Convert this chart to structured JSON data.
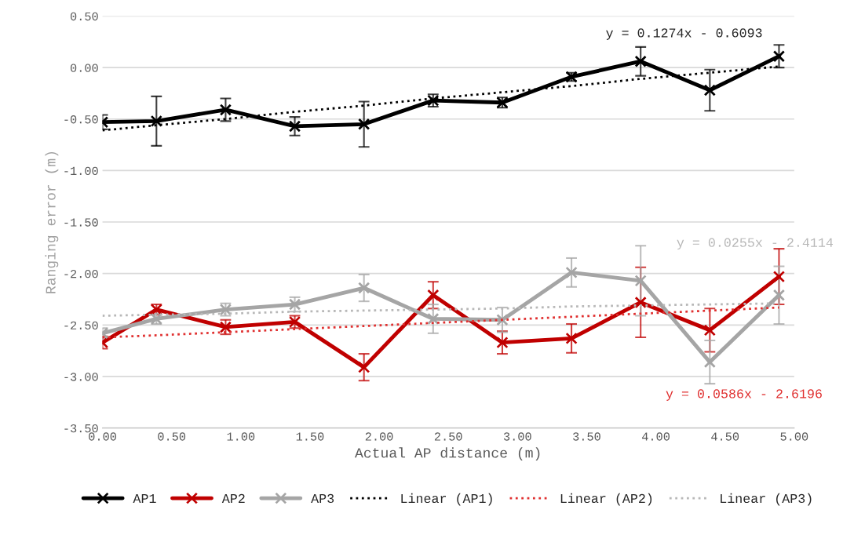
{
  "chart_data": {
    "type": "line",
    "xlabel": "Actual AP distance (m)",
    "ylabel": "Ranging error (m)",
    "x": [
      0,
      0.39,
      0.89,
      1.39,
      1.89,
      2.39,
      2.89,
      3.39,
      3.89,
      4.39,
      4.89
    ],
    "series": [
      {
        "name": "AP1",
        "color": "#000000",
        "marker": "cross",
        "values": [
          -0.53,
          -0.52,
          -0.41,
          -0.57,
          -0.55,
          -0.32,
          -0.34,
          -0.09,
          0.06,
          -0.22,
          0.11
        ],
        "errors": [
          0.07,
          0.24,
          0.11,
          0.09,
          0.22,
          0.06,
          0.05,
          0.04,
          0.14,
          0.2,
          0.11
        ]
      },
      {
        "name": "AP2",
        "color": "#c00000",
        "marker": "cross",
        "values": [
          -2.67,
          -2.35,
          -2.52,
          -2.47,
          -2.91,
          -2.21,
          -2.67,
          -2.63,
          -2.28,
          -2.55,
          -2.03
        ],
        "errors": [
          0.06,
          0.05,
          0.07,
          0.06,
          0.13,
          0.13,
          0.11,
          0.14,
          0.34,
          0.21,
          0.27
        ]
      },
      {
        "name": "AP3",
        "color": "#a5a5a5",
        "marker": "cross",
        "values": [
          -2.58,
          -2.44,
          -2.35,
          -2.3,
          -2.14,
          -2.44,
          -2.45,
          -1.99,
          -2.07,
          -2.86,
          -2.21
        ],
        "errors": [
          0.05,
          0.05,
          0.06,
          0.07,
          0.13,
          0.14,
          0.12,
          0.14,
          0.34,
          0.21,
          0.28
        ]
      },
      {
        "name": "Linear (AP1)",
        "color": "#000000",
        "marker": "none",
        "line_style": "dotted",
        "values": [
          -0.61,
          -0.56,
          -0.5,
          -0.43,
          -0.37,
          -0.3,
          -0.24,
          -0.18,
          -0.11,
          -0.05,
          0.01
        ]
      },
      {
        "name": "Linear (AP2)",
        "color": "#e03030",
        "marker": "none",
        "line_style": "dotted",
        "values": [
          -2.62,
          -2.6,
          -2.57,
          -2.54,
          -2.51,
          -2.48,
          -2.45,
          -2.42,
          -2.39,
          -2.36,
          -2.33
        ]
      },
      {
        "name": "Linear (AP3)",
        "color": "#b8b8b8",
        "marker": "none",
        "line_style": "dotted",
        "values": [
          -2.41,
          -2.4,
          -2.39,
          -2.37,
          -2.36,
          -2.35,
          -2.34,
          -2.32,
          -2.31,
          -2.3,
          -2.29
        ]
      }
    ],
    "annotations": [
      "y = 0.1274x - 0.6093",
      "y = 0.0586x - 2.6196",
      "y = 0.0255x - 2.4114"
    ],
    "xlim": [
      0,
      5
    ],
    "ylim": [
      -3.5,
      0.5
    ],
    "xticks": [
      {
        "value": 0,
        "label": "0.00"
      },
      {
        "value": 0.5,
        "label": "0.50"
      },
      {
        "value": 1,
        "label": "1.00"
      },
      {
        "value": 1.5,
        "label": "1.50"
      },
      {
        "value": 2,
        "label": "2.00"
      },
      {
        "value": 2.5,
        "label": "2.50"
      },
      {
        "value": 3,
        "label": "3.00"
      },
      {
        "value": 3.5,
        "label": "3.50"
      },
      {
        "value": 4,
        "label": "4.00"
      },
      {
        "value": 4.5,
        "label": "4.50"
      },
      {
        "value": 5,
        "label": "5.00"
      }
    ],
    "yticks": [
      {
        "value": 0.5,
        "label": "0.50"
      },
      {
        "value": 0,
        "label": "0.00"
      },
      {
        "value": -0.5,
        "label": "-0.50"
      },
      {
        "value": -1,
        "label": "-1.00"
      },
      {
        "value": -1.5,
        "label": "-1.50"
      },
      {
        "value": -2,
        "label": "-2.00"
      },
      {
        "value": -2.5,
        "label": "-2.50"
      },
      {
        "value": -3,
        "label": "-3.00"
      },
      {
        "value": -3.5,
        "label": "-3.50"
      }
    ],
    "grid": "y",
    "legend": "bottom"
  }
}
